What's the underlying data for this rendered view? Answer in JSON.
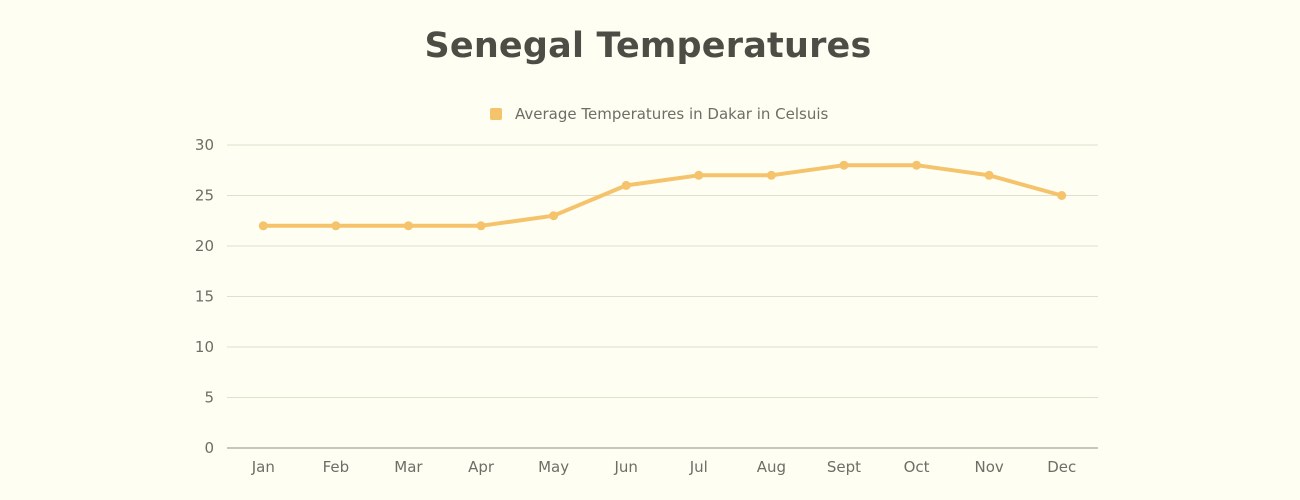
{
  "colors": {
    "background": "#fefef3",
    "series": "#f5c36b",
    "grid": "#e0e0cc",
    "axis": "#a8a898",
    "text": "#6e6e66",
    "title": "#4d4d46"
  },
  "chart_data": {
    "type": "line",
    "title": "Senegal Temperatures",
    "xlabel": "",
    "ylabel": "",
    "categories": [
      "Jan",
      "Feb",
      "Mar",
      "Apr",
      "May",
      "Jun",
      "Jul",
      "Aug",
      "Sept",
      "Oct",
      "Nov",
      "Dec"
    ],
    "series": [
      {
        "name": "Average Temperatures in Dakar in Celsuis",
        "values": [
          22,
          22,
          22,
          22,
          23,
          26,
          27,
          27,
          28,
          28,
          27,
          25
        ]
      }
    ],
    "ylim": [
      0,
      30
    ],
    "yticks": [
      0,
      5,
      10,
      15,
      20,
      25,
      30
    ],
    "grid": true,
    "legend": "top-center"
  }
}
